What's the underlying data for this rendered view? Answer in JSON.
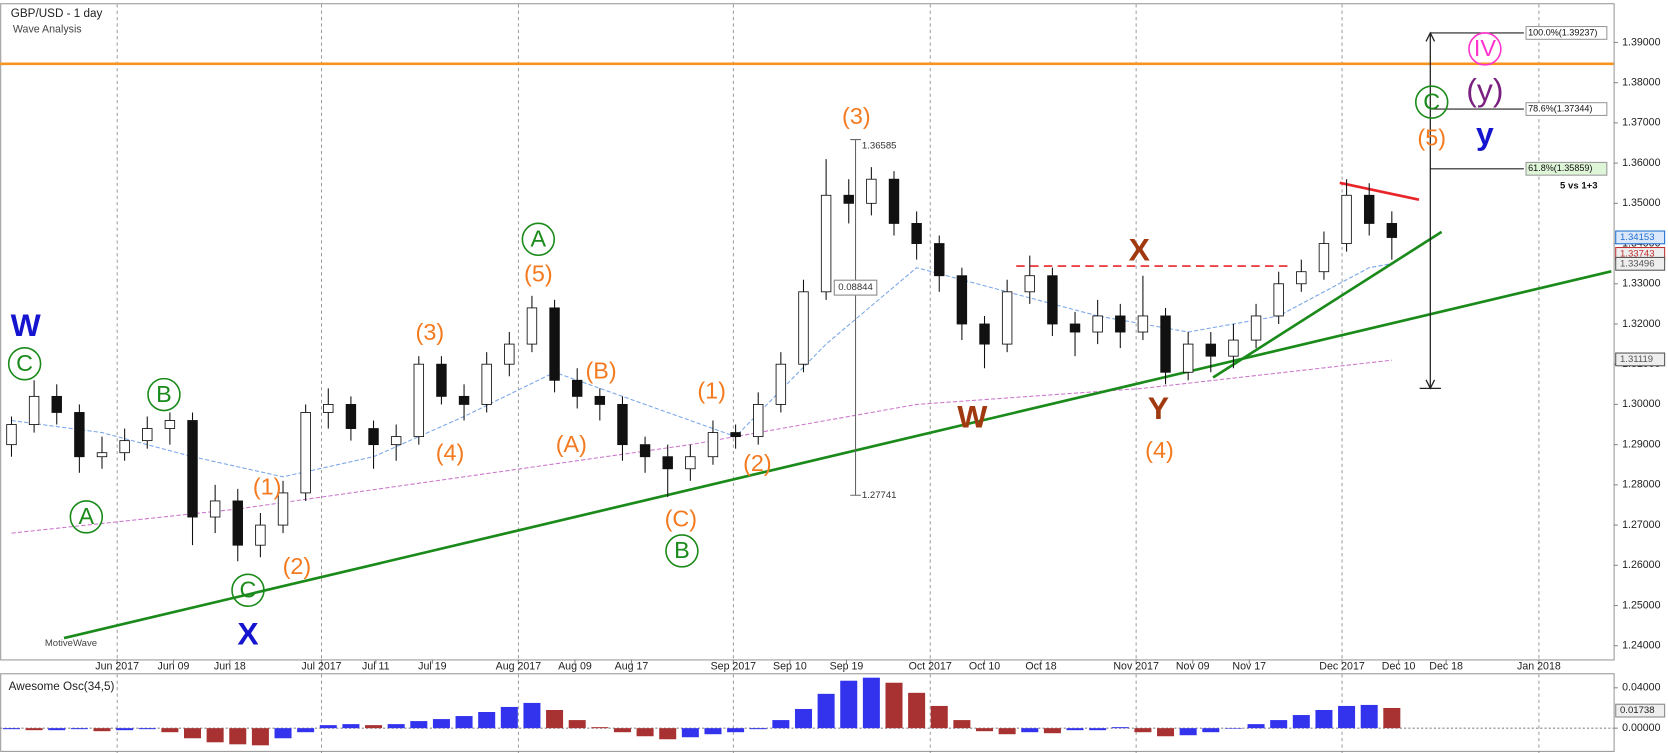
{
  "chart_data": {
    "type": "candlestick",
    "title": "GBP/USD - 1 day",
    "subtitle": "Wave Analysis",
    "watermark": "MotiveWave",
    "xlim": [
      -0.5,
      70.8
    ],
    "ylim": [
      1.2366,
      1.3995
    ],
    "xticks": [
      {
        "value": 4.67,
        "label": "Jun 2017"
      },
      {
        "value": 7.16,
        "label": "Jun 09"
      },
      {
        "value": 9.65,
        "label": "Jun 18"
      },
      {
        "value": 13.7,
        "label": "Jul 2017"
      },
      {
        "value": 16.1,
        "label": "Jul 11"
      },
      {
        "value": 18.6,
        "label": "Jul 19"
      },
      {
        "value": 22.4,
        "label": "Aug 2017"
      },
      {
        "value": 24.9,
        "label": "Aug 09"
      },
      {
        "value": 27.4,
        "label": "Aug 17"
      },
      {
        "value": 31.9,
        "label": "Sep 2017"
      },
      {
        "value": 34.4,
        "label": "Sep 10"
      },
      {
        "value": 36.9,
        "label": "Sep 19"
      },
      {
        "value": 40.6,
        "label": "Oct 2017"
      },
      {
        "value": 43.0,
        "label": "Oct 10"
      },
      {
        "value": 45.5,
        "label": "Oct 18"
      },
      {
        "value": 49.7,
        "label": "Nov 2017"
      },
      {
        "value": 52.2,
        "label": "Nov 09"
      },
      {
        "value": 54.7,
        "label": "Nov 17"
      },
      {
        "value": 58.8,
        "label": "Dec 2017"
      },
      {
        "value": 61.3,
        "label": "Dec 10"
      },
      {
        "value": 63.4,
        "label": "Dec 18"
      },
      {
        "value": 67.5,
        "label": "Jan 2018"
      }
    ],
    "yticks": [
      {
        "value": 1.24,
        "label": "1.24000"
      },
      {
        "value": 1.25,
        "label": "1.25000"
      },
      {
        "value": 1.26,
        "label": "1.26000"
      },
      {
        "value": 1.27,
        "label": "1.27000"
      },
      {
        "value": 1.28,
        "label": "1.28000"
      },
      {
        "value": 1.29,
        "label": "1.29000"
      },
      {
        "value": 1.3,
        "label": "1.30000"
      },
      {
        "value": 1.31,
        "label": "1.31000"
      },
      {
        "value": 1.32,
        "label": "1.32000"
      },
      {
        "value": 1.33,
        "label": "1.33000"
      },
      {
        "value": 1.34,
        "label": "1.34000"
      },
      {
        "value": 1.35,
        "label": "1.35000"
      },
      {
        "value": 1.36,
        "label": "1.36000"
      },
      {
        "value": 1.37,
        "label": "1.37000"
      },
      {
        "value": 1.38,
        "label": "1.38000"
      },
      {
        "value": 1.39,
        "label": "1.39000"
      }
    ],
    "candles": [
      [
        1.29,
        1.297,
        1.287,
        1.295
      ],
      [
        1.295,
        1.306,
        1.293,
        1.302
      ],
      [
        1.302,
        1.305,
        1.295,
        1.298
      ],
      [
        1.298,
        1.3,
        1.283,
        1.287
      ],
      [
        1.287,
        1.292,
        1.284,
        1.288
      ],
      [
        1.288,
        1.294,
        1.286,
        1.291
      ],
      [
        1.291,
        1.297,
        1.289,
        1.294
      ],
      [
        1.294,
        1.298,
        1.29,
        1.296
      ],
      [
        1.296,
        1.298,
        1.265,
        1.272
      ],
      [
        1.272,
        1.28,
        1.268,
        1.276
      ],
      [
        1.276,
        1.279,
        1.261,
        1.265
      ],
      [
        1.265,
        1.273,
        1.262,
        1.27
      ],
      [
        1.27,
        1.281,
        1.268,
        1.278
      ],
      [
        1.278,
        1.3,
        1.276,
        1.298
      ],
      [
        1.298,
        1.304,
        1.294,
        1.3
      ],
      [
        1.3,
        1.302,
        1.291,
        1.294
      ],
      [
        1.294,
        1.296,
        1.284,
        1.29
      ],
      [
        1.29,
        1.295,
        1.286,
        1.292
      ],
      [
        1.292,
        1.312,
        1.29,
        1.31
      ],
      [
        1.31,
        1.312,
        1.3,
        1.302
      ],
      [
        1.302,
        1.305,
        1.296,
        1.3
      ],
      [
        1.3,
        1.313,
        1.298,
        1.31
      ],
      [
        1.31,
        1.318,
        1.307,
        1.315
      ],
      [
        1.315,
        1.327,
        1.313,
        1.324
      ],
      [
        1.324,
        1.326,
        1.303,
        1.306
      ],
      [
        1.306,
        1.309,
        1.299,
        1.302
      ],
      [
        1.302,
        1.304,
        1.296,
        1.3
      ],
      [
        1.3,
        1.302,
        1.286,
        1.29
      ],
      [
        1.29,
        1.292,
        1.283,
        1.287
      ],
      [
        1.287,
        1.29,
        1.277,
        1.284
      ],
      [
        1.284,
        1.29,
        1.281,
        1.287
      ],
      [
        1.287,
        1.296,
        1.285,
        1.293
      ],
      [
        1.293,
        1.295,
        1.289,
        1.292
      ],
      [
        1.292,
        1.303,
        1.29,
        1.3
      ],
      [
        1.3,
        1.313,
        1.298,
        1.31
      ],
      [
        1.31,
        1.331,
        1.308,
        1.328
      ],
      [
        1.328,
        1.361,
        1.326,
        1.352
      ],
      [
        1.352,
        1.356,
        1.345,
        1.35
      ],
      [
        1.35,
        1.359,
        1.347,
        1.356
      ],
      [
        1.356,
        1.358,
        1.342,
        1.345
      ],
      [
        1.345,
        1.348,
        1.336,
        1.34
      ],
      [
        1.34,
        1.342,
        1.328,
        1.332
      ],
      [
        1.332,
        1.334,
        1.316,
        1.32
      ],
      [
        1.32,
        1.322,
        1.309,
        1.315
      ],
      [
        1.315,
        1.331,
        1.313,
        1.328
      ],
      [
        1.328,
        1.337,
        1.325,
        1.332
      ],
      [
        1.332,
        1.334,
        1.317,
        1.32
      ],
      [
        1.32,
        1.323,
        1.312,
        1.318
      ],
      [
        1.318,
        1.326,
        1.315,
        1.322
      ],
      [
        1.322,
        1.325,
        1.314,
        1.318
      ],
      [
        1.318,
        1.332,
        1.316,
        1.322
      ],
      [
        1.322,
        1.324,
        1.305,
        1.308
      ],
      [
        1.308,
        1.318,
        1.306,
        1.315
      ],
      [
        1.315,
        1.318,
        1.308,
        1.312
      ],
      [
        1.312,
        1.32,
        1.309,
        1.316
      ],
      [
        1.316,
        1.325,
        1.314,
        1.322
      ],
      [
        1.322,
        1.333,
        1.32,
        1.33
      ],
      [
        1.33,
        1.336,
        1.328,
        1.333
      ],
      [
        1.333,
        1.343,
        1.331,
        1.34
      ],
      [
        1.34,
        1.356,
        1.338,
        1.352
      ],
      [
        1.352,
        1.355,
        1.342,
        1.345
      ],
      [
        1.345,
        1.348,
        1.336,
        1.3415
      ]
    ],
    "moving_averages": [
      {
        "color": "#7aa7e8",
        "x": [
          0,
          4,
          8,
          12,
          16,
          20,
          24,
          28,
          32,
          36,
          40,
          44,
          48,
          52,
          56,
          60,
          61
        ],
        "y": [
          1.296,
          1.293,
          1.287,
          1.282,
          1.287,
          1.297,
          1.308,
          1.3,
          1.292,
          1.315,
          1.334,
          1.328,
          1.322,
          1.318,
          1.322,
          1.334,
          1.335
        ]
      },
      {
        "color": "#cc77cc",
        "x": [
          0,
          10,
          20,
          30,
          40,
          50,
          61
        ],
        "y": [
          1.268,
          1.274,
          1.282,
          1.29,
          1.3,
          1.304,
          1.311
        ]
      }
    ],
    "overlays": [
      {
        "color": "#f7931e",
        "dash": false,
        "x": [
          -0.5,
          70.8
        ],
        "y": [
          1.3847,
          1.3847
        ]
      },
      {
        "color": "#1a8a1a",
        "dash": false,
        "x": [
          2.32,
          70.7
        ],
        "y": [
          1.2419,
          1.3331
        ]
      },
      {
        "color": "#1a8a1a",
        "dash": false,
        "x": [
          53.1,
          63.2
        ],
        "y": [
          1.3067,
          1.3429
        ]
      },
      {
        "color": "#e8262a",
        "dash": false,
        "x": [
          58.7,
          62.2
        ],
        "y": [
          1.3551,
          1.3509
        ]
      },
      {
        "color": "#e8262a",
        "dash": true,
        "x": [
          44.4,
          56.6
        ],
        "y": [
          1.3344,
          1.3344
        ]
      }
    ],
    "annotations": [
      {
        "text": "W",
        "color": "#1515d0",
        "circled": false
      },
      {
        "text": "C",
        "color": "#1a8a1a",
        "circled": true
      },
      {
        "text": "B",
        "color": "#1a8a1a",
        "circled": true
      },
      {
        "text": "A",
        "color": "#1a8a1a",
        "circled": true
      },
      {
        "text": "C",
        "color": "#1a8a1a",
        "circled": true
      },
      {
        "text": "X",
        "color": "#1515d0",
        "circled": false
      },
      {
        "text": "(1)",
        "color": "#f47a20",
        "circled": false
      },
      {
        "text": "(2)",
        "color": "#f47a20",
        "circled": false
      },
      {
        "text": "(3)",
        "color": "#f47a20",
        "circled": false
      },
      {
        "text": "(4)",
        "color": "#f47a20",
        "circled": false
      },
      {
        "text": "(5)",
        "color": "#f47a20",
        "circled": false
      },
      {
        "text": "A",
        "color": "#1a8a1a",
        "circled": true
      },
      {
        "text": "(B)",
        "color": "#f47a20",
        "circled": false
      },
      {
        "text": "(A)",
        "color": "#f47a20",
        "circled": false
      },
      {
        "text": "(1)",
        "color": "#f47a20",
        "circled": false
      },
      {
        "text": "(2)",
        "color": "#f47a20",
        "circled": false
      },
      {
        "text": "(C)",
        "color": "#f47a20",
        "circled": false
      },
      {
        "text": "B",
        "color": "#1a8a1a",
        "circled": true
      },
      {
        "text": "(3)",
        "color": "#f47a20",
        "circled": false
      },
      {
        "text": "W",
        "color": "#a0390f",
        "circled": false
      },
      {
        "text": "X",
        "color": "#a0390f",
        "circled": false
      },
      {
        "text": "Y",
        "color": "#a0390f",
        "circled": false
      },
      {
        "text": "(4)",
        "color": "#f47a20",
        "circled": false
      },
      {
        "text": "(5)",
        "color": "#f47a20",
        "circled": false
      },
      {
        "text": "C",
        "color": "#1a8a1a",
        "circled": true
      },
      {
        "text": "(y)",
        "color": "#7a2080",
        "circled": false
      },
      {
        "text": "y",
        "color": "#1515d0",
        "circled": false
      },
      {
        "text": "IV",
        "color": "#ff33cc",
        "circled": true
      }
    ],
    "fib_x": 62.7,
    "fib_base": 1.304,
    "fib_levels": [
      {
        "value": 1.39237,
        "label": "100.0%(1.39237)"
      },
      {
        "value": 1.37344,
        "label": "78.6%(1.37344)"
      },
      {
        "value": 1.35859,
        "label": "61.8%(1.35859)"
      }
    ],
    "fib_note": "5 vs 1+3",
    "measure": {
      "x": 37.3,
      "top": 1.36585,
      "bottom": 1.27741,
      "span": 0.08844
    },
    "price_tags": [
      {
        "value": 1.34153,
        "color": "#1f6fd0"
      },
      {
        "value": 1.33743,
        "color": "#c03030"
      },
      {
        "value": 1.33496,
        "color": "#555555"
      },
      {
        "value": 1.31119,
        "color": "#555555"
      }
    ],
    "oscillator": {
      "title": "Awesome Osc(34,5)",
      "ylim": [
        -0.0225,
        0.0523
      ],
      "yticks": [
        {
          "value": 0.04,
          "label": "0.04000"
        },
        {
          "value": 0,
          "label": "0.00000"
        }
      ],
      "last": 0.01738,
      "up_color": "#3333ee",
      "down_color": "#a83232",
      "values": [
        -0.001,
        -0.002,
        -0.002,
        -0.001,
        -0.003,
        -0.002,
        -0.001,
        -0.004,
        -0.01,
        -0.014,
        -0.016,
        -0.017,
        -0.01,
        -0.004,
        0.003,
        0.004,
        0.003,
        0.004,
        0.007,
        0.009,
        0.012,
        0.016,
        0.021,
        0.025,
        0.018,
        0.008,
        0.001,
        -0.004,
        -0.008,
        -0.011,
        -0.009,
        -0.006,
        -0.004,
        -0.001,
        0.008,
        0.019,
        0.034,
        0.047,
        0.05,
        0.045,
        0.035,
        0.022,
        0.008,
        -0.003,
        -0.006,
        -0.004,
        -0.005,
        -0.002,
        -0.002,
        0.001,
        -0.004,
        -0.008,
        -0.007,
        -0.004,
        0.0,
        0.004,
        0.008,
        0.013,
        0.018,
        0.022,
        0.023,
        0.02
      ]
    }
  }
}
